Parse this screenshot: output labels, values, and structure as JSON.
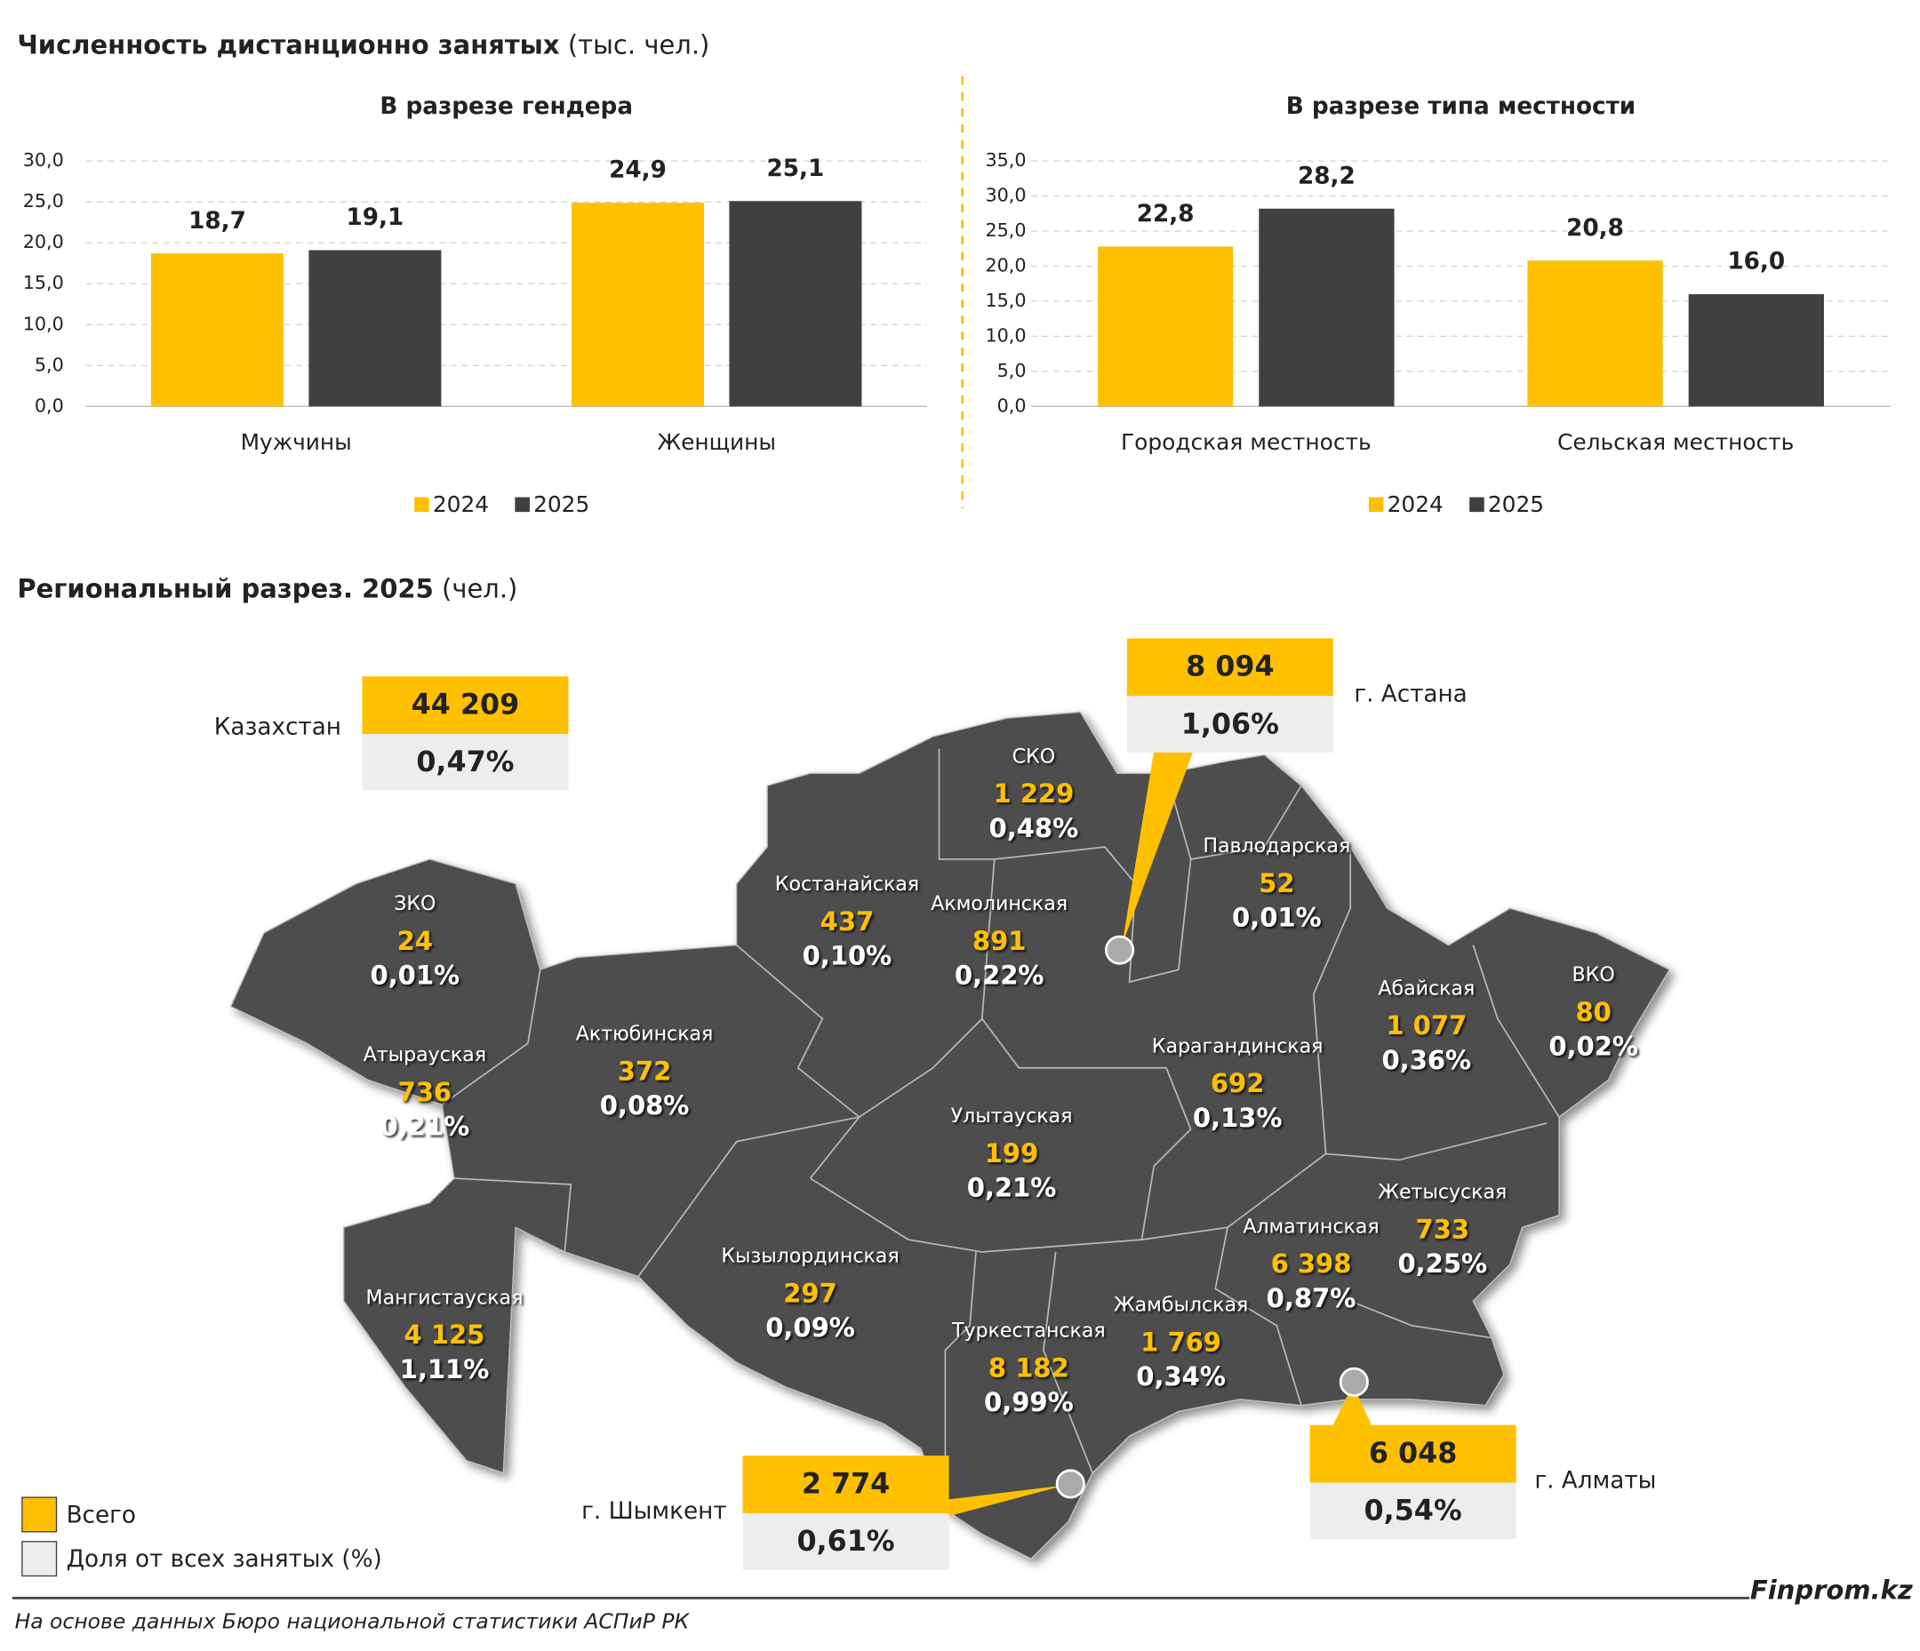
{
  "title": "Численность дистанционно занятых",
  "title_unit": "(тыс. чел.)",
  "chart_data": [
    {
      "type": "bar",
      "title": "В разрезе гендера",
      "categories": [
        "Мужчины",
        "Женщины"
      ],
      "series": [
        {
          "name": "2024",
          "color": "#ffc000",
          "values": [
            18.7,
            24.9
          ],
          "value_labels": [
            "18,7",
            "24,9"
          ]
        },
        {
          "name": "2025",
          "color": "#404040",
          "values": [
            19.1,
            25.1
          ],
          "value_labels": [
            "19,1",
            "25,1"
          ]
        }
      ],
      "ylim": [
        0,
        30
      ],
      "yticks": [
        {
          "value": 0,
          "label": "0,0"
        },
        {
          "value": 5,
          "label": "5,0"
        },
        {
          "value": 10,
          "label": "10,0"
        },
        {
          "value": 15,
          "label": "15,0"
        },
        {
          "value": 20,
          "label": "20,0"
        },
        {
          "value": 25,
          "label": "25,0"
        },
        {
          "value": 30,
          "label": "30,0"
        }
      ],
      "grid": true,
      "legend": "bottom"
    },
    {
      "type": "bar",
      "title": "В разрезе типа местности",
      "categories": [
        "Городская местность",
        "Сельская местность"
      ],
      "series": [
        {
          "name": "2024",
          "color": "#ffc000",
          "values": [
            22.8,
            20.8
          ],
          "value_labels": [
            "22,8",
            "20,8"
          ]
        },
        {
          "name": "2025",
          "color": "#404040",
          "values": [
            28.2,
            16.0
          ],
          "value_labels": [
            "28,2",
            "16,0"
          ]
        }
      ],
      "ylim": [
        0,
        35
      ],
      "yticks": [
        {
          "value": 0,
          "label": "0,0"
        },
        {
          "value": 5,
          "label": "5,0"
        },
        {
          "value": 10,
          "label": "10,0"
        },
        {
          "value": 15,
          "label": "15,0"
        },
        {
          "value": 20,
          "label": "20,0"
        },
        {
          "value": 25,
          "label": "25,0"
        },
        {
          "value": 30,
          "label": "30,0"
        },
        {
          "value": 35,
          "label": "35,0"
        }
      ],
      "grid": true,
      "legend": "bottom"
    }
  ],
  "map": {
    "title": "Региональный разрез. 2025",
    "title_unit": "(чел.)",
    "country": {
      "name": "Казахстан",
      "total": "44 209",
      "share": "0,47%"
    },
    "cities": [
      {
        "name": "г. Астана",
        "total": "8 094",
        "share": "1,06%"
      },
      {
        "name": "г. Шымкент",
        "total": "2 774",
        "share": "0,61%"
      },
      {
        "name": "г. Алматы",
        "total": "6 048",
        "share": "0,54%"
      }
    ],
    "regions": [
      {
        "name": "ЗКО",
        "total": "24",
        "share": "0,01%"
      },
      {
        "name": "Атырауская",
        "total": "736",
        "share": "0,21%"
      },
      {
        "name": "Актюбинская",
        "total": "372",
        "share": "0,08%"
      },
      {
        "name": "Костанайская",
        "total": "437",
        "share": "0,10%"
      },
      {
        "name": "СКО",
        "total": "1 229",
        "share": "0,48%"
      },
      {
        "name": "Акмолинская",
        "total": "891",
        "share": "0,22%"
      },
      {
        "name": "Павлодарская",
        "total": "52",
        "share": "0,01%"
      },
      {
        "name": "Абайская",
        "total": "1 077",
        "share": "0,36%"
      },
      {
        "name": "ВКО",
        "total": "80",
        "share": "0,02%"
      },
      {
        "name": "Карагандинская",
        "total": "692",
        "share": "0,13%"
      },
      {
        "name": "Улытауская",
        "total": "199",
        "share": "0,21%"
      },
      {
        "name": "Жетысуская",
        "total": "733",
        "share": "0,25%"
      },
      {
        "name": "Алматинская",
        "total": "6 398",
        "share": "0,87%"
      },
      {
        "name": "Кызылординская",
        "total": "297",
        "share": "0,09%"
      },
      {
        "name": "Жамбылская",
        "total": "1 769",
        "share": "0,34%"
      },
      {
        "name": "Туркестанская",
        "total": "8 182",
        "share": "0,99%"
      },
      {
        "name": "Мангистауская",
        "total": "4 125",
        "share": "1,11%"
      }
    ],
    "legend": [
      "Всего",
      "Доля от всех занятых (%)"
    ]
  },
  "source": "На основе данных Бюро национальной статистики АСПиР РК",
  "brand": "Finprom.kz"
}
